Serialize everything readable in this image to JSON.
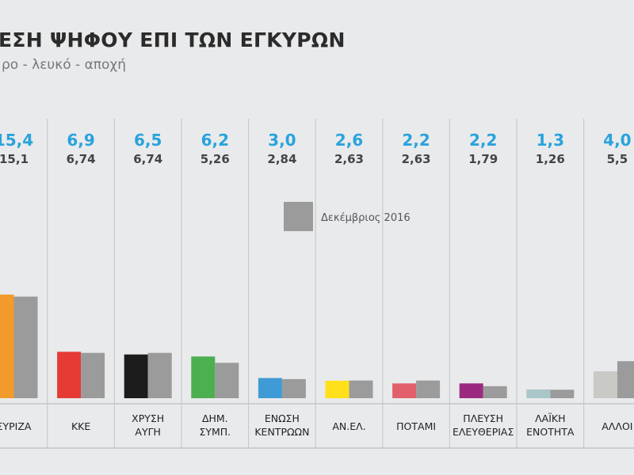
{
  "chart_data": {
    "type": "bar",
    "title": "ΕΣΗ ΨΗΦΟΥ ΕΠΙ ΤΩΝ ΕΓΚΥΡΩΝ",
    "subtitle": "ρο - λευκό - αποχή",
    "categories": [
      [
        "ΣΥΡΙΖΑ"
      ],
      [
        "ΚΚΕ"
      ],
      [
        "ΧΡΥΣΗ",
        "ΑΥΓΗ"
      ],
      [
        "ΔΗΜ.",
        "ΣΥΜΠ."
      ],
      [
        "ΕΝΩΣΗ",
        "ΚΕΝΤΡΩΩΝ"
      ],
      [
        "ΑΝ.ΕΛ."
      ],
      [
        "ΠΟΤΑΜΙ"
      ],
      [
        "ΠΛΕΥΣΗ",
        "ΕΛΕΥΘΕΡΙΑΣ"
      ],
      [
        "ΛΑΪΚΗ",
        "ΕΝΟΤΗΤΑ"
      ],
      [
        "ΑΛΛΟΙ"
      ]
    ],
    "series": [
      {
        "values": [
          15.4,
          6.9,
          6.5,
          6.2,
          3.0,
          2.6,
          2.2,
          2.2,
          1.3,
          4.0
        ],
        "labels": [
          "15,4",
          "6,9",
          "6,5",
          "6,2",
          "3,0",
          "2,6",
          "2,2",
          "2,2",
          "1,3",
          "4,0"
        ],
        "colors": [
          "#f39a2c",
          "#e63b35",
          "#1c1c1c",
          "#4caf50",
          "#3f9bd6",
          "#ffe01a",
          "#e2606b",
          "#9b2a7f",
          "#a9c7c9",
          "#c9c9c6"
        ]
      },
      {
        "name": "Δεκέμβριος 2016",
        "values": [
          15.1,
          6.74,
          6.74,
          5.26,
          2.84,
          2.63,
          2.63,
          1.79,
          1.26,
          5.5
        ],
        "labels": [
          "15,1",
          "6,74",
          "6,74",
          "5,26",
          "2,84",
          "2,63",
          "2,63",
          "1,79",
          "1,26",
          "5,5"
        ],
        "color": "#9b9b9b"
      }
    ],
    "value_label_color": "#29a3dc",
    "grid": false,
    "legend_position": "center-top"
  }
}
